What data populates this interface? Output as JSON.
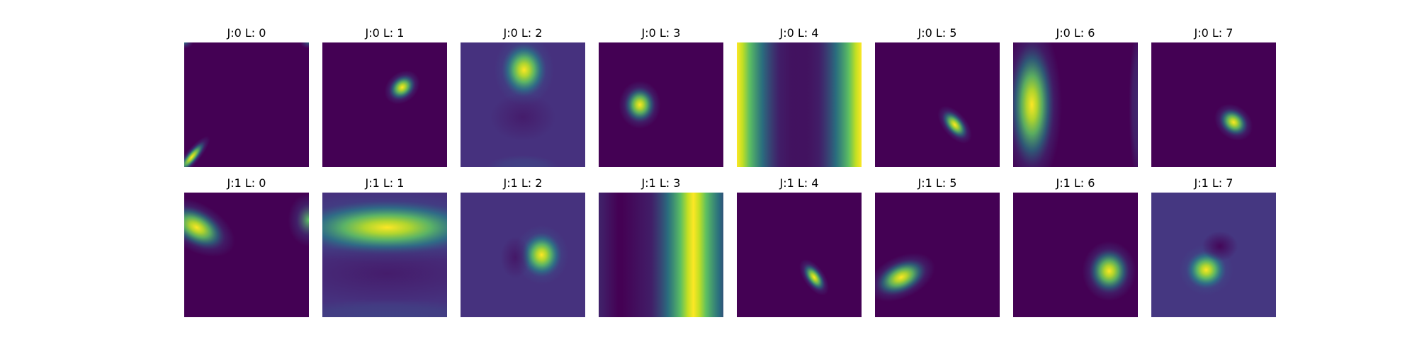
{
  "chart_data": {
    "type": "heatmap",
    "colormap": "viridis",
    "grid": false,
    "axes": "off",
    "layout": {
      "rows": 2,
      "cols": 8
    },
    "panels": [
      {
        "title": "J:0 L: 0",
        "J": 0,
        "L": 0,
        "bg": "#440154",
        "blobs": [
          {
            "cx": 0.06,
            "cy": 0.92,
            "sx": 0.09,
            "sy": 0.025,
            "angle": -50,
            "amp": 1.0
          },
          {
            "cx": 0.0,
            "cy": 0.0,
            "sx": 0.03,
            "sy": 0.02,
            "angle": 0,
            "amp": 0.45
          },
          {
            "cx": 1.0,
            "cy": 0.0,
            "sx": 0.03,
            "sy": 0.02,
            "angle": 0,
            "amp": 0.35
          }
        ]
      },
      {
        "title": "J:0 L: 1",
        "J": 0,
        "L": 1,
        "bg": "#440154",
        "blobs": [
          {
            "cx": 0.64,
            "cy": 0.36,
            "sx": 0.065,
            "sy": 0.05,
            "angle": -40,
            "amp": 1.0
          }
        ]
      },
      {
        "title": "J:0 L: 2",
        "J": 0,
        "L": 2,
        "bg": "#46317e",
        "blobs": [
          {
            "cx": 0.51,
            "cy": 0.22,
            "sx": 0.1,
            "sy": 0.12,
            "angle": 0,
            "amp": 1.0
          },
          {
            "cx": 0.5,
            "cy": 0.6,
            "sx": 0.11,
            "sy": 0.08,
            "angle": 0,
            "amp": -0.12
          },
          {
            "cx": 0.5,
            "cy": 1.0,
            "sx": 0.12,
            "sy": 0.04,
            "angle": 0,
            "amp": 0.15
          }
        ]
      },
      {
        "title": "J:0 L: 3",
        "J": 0,
        "L": 3,
        "bg": "#440154",
        "blobs": [
          {
            "cx": 0.33,
            "cy": 0.5,
            "sx": 0.07,
            "sy": 0.08,
            "angle": 0,
            "amp": 1.0
          }
        ]
      },
      {
        "title": "J:0 L: 4",
        "J": 0,
        "L": 4,
        "bg": "#440154",
        "stripes": [
          {
            "cx": 0.0,
            "sx": 0.22,
            "amp": 1.0
          },
          {
            "cx": 1.0,
            "sx": 0.22,
            "amp": 1.0
          }
        ]
      },
      {
        "title": "J:0 L: 5",
        "J": 0,
        "L": 5,
        "bg": "#440154",
        "blobs": [
          {
            "cx": 0.64,
            "cy": 0.66,
            "sx": 0.075,
            "sy": 0.04,
            "angle": 50,
            "amp": 1.0
          }
        ]
      },
      {
        "title": "J:0 L: 6",
        "J": 0,
        "L": 6,
        "bg": "#440154",
        "blobs": [
          {
            "cx": 0.15,
            "cy": 0.5,
            "sx": 0.1,
            "sy": 0.28,
            "angle": 0,
            "amp": 1.0
          },
          {
            "cx": 1.0,
            "cy": 0.5,
            "sx": 0.03,
            "sy": 0.25,
            "angle": 0,
            "amp": 0.12
          }
        ]
      },
      {
        "title": "J:0 L: 7",
        "J": 0,
        "L": 7,
        "bg": "#440154",
        "blobs": [
          {
            "cx": 0.66,
            "cy": 0.64,
            "sx": 0.07,
            "sy": 0.055,
            "angle": 40,
            "amp": 1.0
          }
        ]
      },
      {
        "title": "J:1 L: 0",
        "J": 1,
        "L": 0,
        "bg": "#440154",
        "blobs": [
          {
            "cx": 0.1,
            "cy": 0.28,
            "sx": 0.14,
            "sy": 0.08,
            "angle": 30,
            "amp": 1.0
          },
          {
            "cx": 1.0,
            "cy": 0.22,
            "sx": 0.07,
            "sy": 0.09,
            "angle": 0,
            "amp": 0.7
          }
        ]
      },
      {
        "title": "J:1 L: 1",
        "J": 1,
        "L": 1,
        "bg": "#46317e",
        "blobs": [
          {
            "cx": 0.52,
            "cy": 0.28,
            "sx": 0.42,
            "sy": 0.12,
            "angle": 0,
            "amp": 1.0
          },
          {
            "cx": 0.52,
            "cy": 0.65,
            "sx": 0.38,
            "sy": 0.1,
            "angle": 0,
            "amp": -0.12
          },
          {
            "cx": 0.52,
            "cy": 1.0,
            "sx": 0.4,
            "sy": 0.06,
            "angle": 0,
            "amp": 0.15
          }
        ]
      },
      {
        "title": "J:1 L: 2",
        "J": 1,
        "L": 2,
        "bg": "#46327e",
        "blobs": [
          {
            "cx": 0.65,
            "cy": 0.5,
            "sx": 0.09,
            "sy": 0.1,
            "angle": 0,
            "amp": 1.0
          },
          {
            "cx": 0.44,
            "cy": 0.52,
            "sx": 0.05,
            "sy": 0.07,
            "angle": 0,
            "amp": -0.15
          }
        ]
      },
      {
        "title": "J:1 L: 3",
        "J": 1,
        "L": 3,
        "bg": "#440154",
        "stripes": [
          {
            "cx": 0.76,
            "sx": 0.22,
            "amp": 1.0
          },
          {
            "cx": 0.0,
            "sx": 0.06,
            "amp": 0.3
          }
        ]
      },
      {
        "title": "J:1 L: 4",
        "J": 1,
        "L": 4,
        "bg": "#440154",
        "blobs": [
          {
            "cx": 0.62,
            "cy": 0.68,
            "sx": 0.07,
            "sy": 0.035,
            "angle": 55,
            "amp": 1.0
          }
        ]
      },
      {
        "title": "J:1 L: 5",
        "J": 1,
        "L": 5,
        "bg": "#440154",
        "blobs": [
          {
            "cx": 0.21,
            "cy": 0.68,
            "sx": 0.12,
            "sy": 0.07,
            "angle": -25,
            "amp": 1.0
          }
        ]
      },
      {
        "title": "J:1 L: 6",
        "J": 1,
        "L": 6,
        "bg": "#440154",
        "blobs": [
          {
            "cx": 0.77,
            "cy": 0.63,
            "sx": 0.09,
            "sy": 0.1,
            "angle": 0,
            "amp": 1.0
          }
        ]
      },
      {
        "title": "J:1 L: 7",
        "J": 1,
        "L": 7,
        "bg": "#453781",
        "blobs": [
          {
            "cx": 0.44,
            "cy": 0.62,
            "sx": 0.09,
            "sy": 0.085,
            "angle": 0,
            "amp": 1.0
          },
          {
            "cx": 0.55,
            "cy": 0.43,
            "sx": 0.06,
            "sy": 0.05,
            "angle": 0,
            "amp": -0.3
          }
        ]
      }
    ]
  }
}
